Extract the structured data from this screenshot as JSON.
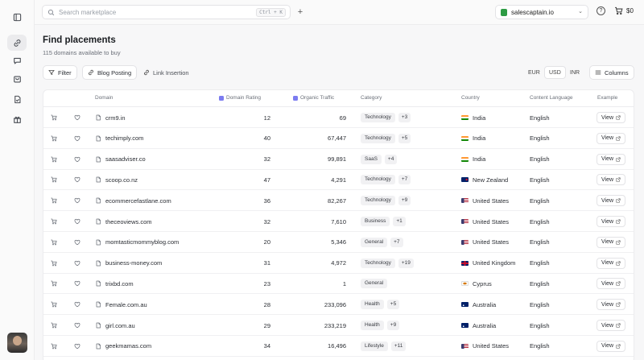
{
  "search": {
    "placeholder": "Search marketplace",
    "shortcut": "Ctrl + K"
  },
  "workspace": {
    "name": "salescaptain.io"
  },
  "cart": {
    "amount": "$0"
  },
  "page": {
    "title": "Find placements",
    "subtitle": "115 domains available to buy"
  },
  "toolbar": {
    "filter": "Filter",
    "blog_posting": "Blog Posting",
    "link_insertion": "Link Insertion",
    "currencies": [
      "EUR",
      "USD",
      "INR"
    ],
    "selected_currency": "USD",
    "columns": "Columns"
  },
  "table": {
    "headers": {
      "domain": "Domain",
      "rating": "Domain Rating",
      "traffic": "Organic Traffic",
      "category": "Category",
      "country": "Country",
      "language": "Content Language",
      "example": "Example"
    },
    "view_label": "View",
    "rows": [
      {
        "domain": "crm9.in",
        "rating": "12",
        "traffic": "69",
        "category": "Technology",
        "more": "+3",
        "country": "India",
        "flag": "in",
        "language": "English"
      },
      {
        "domain": "techimply.com",
        "rating": "40",
        "traffic": "67,447",
        "category": "Technology",
        "more": "+5",
        "country": "India",
        "flag": "in",
        "language": "English"
      },
      {
        "domain": "saasadviser.co",
        "rating": "32",
        "traffic": "99,891",
        "category": "SaaS",
        "more": "+4",
        "country": "India",
        "flag": "in",
        "language": "English"
      },
      {
        "domain": "scoop.co.nz",
        "rating": "47",
        "traffic": "4,291",
        "category": "Technology",
        "more": "+7",
        "country": "New Zealand",
        "flag": "nz",
        "language": "English"
      },
      {
        "domain": "ecommercefastlane.com",
        "rating": "36",
        "traffic": "82,267",
        "category": "Technology",
        "more": "+9",
        "country": "United States",
        "flag": "us",
        "language": "English"
      },
      {
        "domain": "theceoviews.com",
        "rating": "32",
        "traffic": "7,610",
        "category": "Business",
        "more": "+1",
        "country": "United States",
        "flag": "us",
        "language": "English"
      },
      {
        "domain": "momtasticmommyblog.com",
        "rating": "20",
        "traffic": "5,346",
        "category": "General",
        "more": "+7",
        "country": "United States",
        "flag": "us",
        "language": "English"
      },
      {
        "domain": "business-money.com",
        "rating": "31",
        "traffic": "4,972",
        "category": "Technology",
        "more": "+19",
        "country": "United Kingdom",
        "flag": "gb",
        "language": "English"
      },
      {
        "domain": "trixbd.com",
        "rating": "23",
        "traffic": "1",
        "category": "General",
        "more": "",
        "country": "Cyprus",
        "flag": "cy",
        "language": "English"
      },
      {
        "domain": "Female.com.au",
        "rating": "28",
        "traffic": "233,096",
        "category": "Health",
        "more": "+5",
        "country": "Australia",
        "flag": "au",
        "language": "English"
      },
      {
        "domain": "girl.com.au",
        "rating": "29",
        "traffic": "233,219",
        "category": "Health",
        "more": "+9",
        "country": "Australia",
        "flag": "au",
        "language": "English"
      },
      {
        "domain": "geekmamas.com",
        "rating": "34",
        "traffic": "16,496",
        "category": "Lifestyle",
        "more": "+11",
        "country": "United States",
        "flag": "us",
        "language": "English"
      }
    ]
  }
}
